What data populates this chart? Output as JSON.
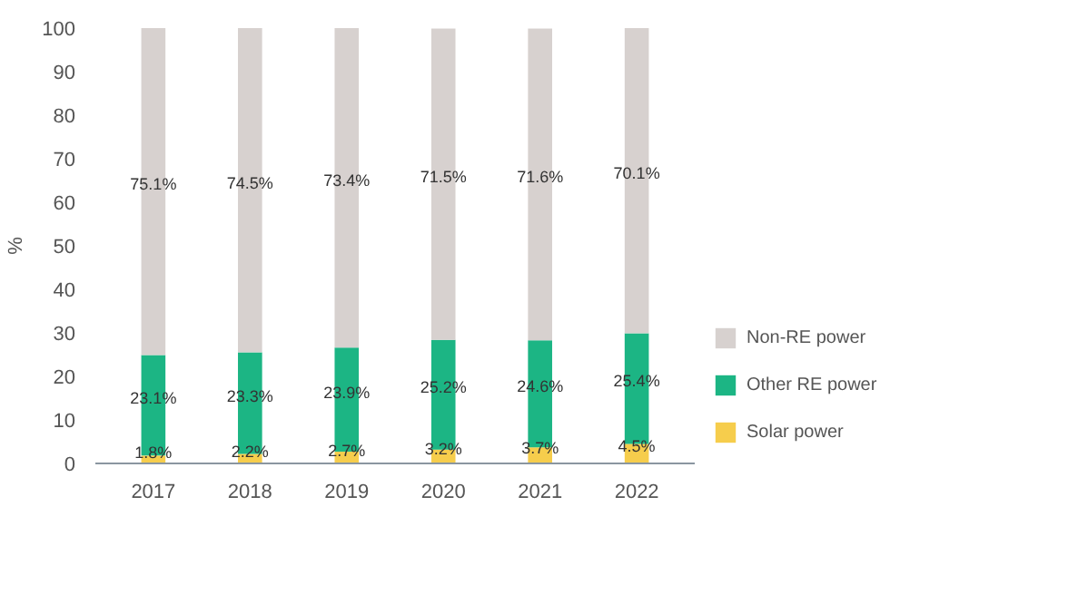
{
  "chart_data": {
    "type": "bar",
    "stacked": true,
    "ylabel": "%",
    "categories": [
      "2017",
      "2018",
      "2019",
      "2020",
      "2021",
      "2022"
    ],
    "series": [
      {
        "name": "Solar power",
        "color": "#f6cd4c",
        "values": [
          1.8,
          2.2,
          2.7,
          3.2,
          3.7,
          4.5
        ],
        "value_labels": [
          "1.8%",
          "2.2%",
          "2.7%",
          "3.2%",
          "3.7%",
          "4.5%"
        ]
      },
      {
        "name": "Other RE power",
        "color": "#1cb584",
        "values": [
          23.1,
          23.3,
          23.9,
          25.2,
          24.6,
          25.4
        ],
        "value_labels": [
          "23.1%",
          "23.3%",
          "23.9%",
          "25.2%",
          "24.6%",
          "25.4%"
        ]
      },
      {
        "name": "Non-RE power",
        "color": "#d7d1cf",
        "values": [
          75.1,
          74.5,
          73.4,
          71.5,
          71.6,
          70.1
        ],
        "value_labels": [
          "75.1%",
          "74.5%",
          "73.4%",
          "71.5%",
          "71.6%",
          "70.1%"
        ]
      }
    ],
    "ylim": [
      0,
      100
    ],
    "yticks": [
      0,
      10,
      20,
      30,
      40,
      50,
      60,
      70,
      80,
      90,
      100
    ],
    "grid": false,
    "legend": "right"
  }
}
